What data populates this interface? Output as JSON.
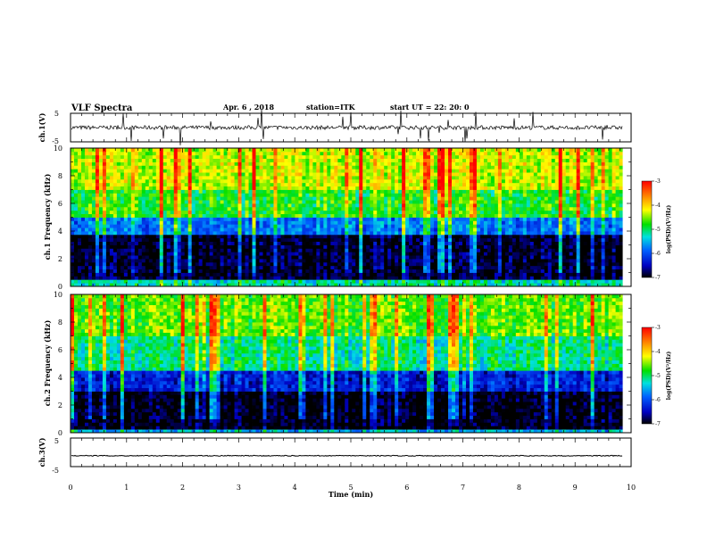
{
  "header": {
    "title": "VLF Spectra",
    "date": "Apr. 6 , 2018",
    "station": "station=ITK",
    "start": "start  UT  =   22: 20: 0"
  },
  "colors": {
    "background": "#ffffff",
    "axes": "#000000",
    "trace": "#000000"
  },
  "chart_data": [
    {
      "type": "line",
      "panel": "ch1-waveform",
      "ylabel": "ch.1(V)",
      "ylim": [
        -5,
        5
      ],
      "yticks": [
        "5",
        "-5"
      ],
      "xlim": [
        0,
        10
      ],
      "y_baseline_v": 0
    },
    {
      "type": "heatmap",
      "panel": "ch1-spectrogram",
      "ylabel": "ch.1  Frequency  (kHz)",
      "ylim": [
        0,
        10
      ],
      "xlim": [
        0,
        9.85
      ],
      "yticks": [
        "0",
        "2",
        "4",
        "6",
        "8",
        "10"
      ],
      "colorbar": {
        "label": "log(PSD)(V²/Hz)",
        "range": [
          -7,
          -3
        ],
        "ticks": [
          "-3",
          "-4",
          "-5",
          "-6",
          "-7"
        ]
      },
      "bands": [
        {
          "f_from_khz": 0,
          "f_to_khz": 0.5,
          "log_psd": -5.2
        },
        {
          "f_from_khz": 0.5,
          "f_to_khz": 3.8,
          "log_psd": -6.9
        },
        {
          "f_from_khz": 3.8,
          "f_to_khz": 5,
          "log_psd": -5.8
        },
        {
          "f_from_khz": 5,
          "f_to_khz": 7,
          "log_psd": -4.8
        },
        {
          "f_from_khz": 7,
          "f_to_khz": 10,
          "log_psd": -4.3
        }
      ]
    },
    {
      "type": "heatmap",
      "panel": "ch2-spectrogram",
      "ylabel": "ch.2  Frequency  (kHz)",
      "ylim": [
        0,
        10
      ],
      "xlim": [
        0,
        9.85
      ],
      "yticks": [
        "0",
        "2",
        "4",
        "6",
        "8",
        "10"
      ],
      "colorbar": {
        "label": "log(PSD)(V²/Hz)",
        "range": [
          -7,
          -3
        ],
        "ticks": [
          "-3",
          "-4",
          "-5",
          "-6",
          "-7"
        ]
      },
      "bands": [
        {
          "f_from_khz": 0,
          "f_to_khz": 0.3,
          "log_psd": -5.5
        },
        {
          "f_from_khz": 0.3,
          "f_to_khz": 3,
          "log_psd": -7
        },
        {
          "f_from_khz": 3,
          "f_to_khz": 4.5,
          "log_psd": -6.3
        },
        {
          "f_from_khz": 4.5,
          "f_to_khz": 7,
          "log_psd": -5.1
        },
        {
          "f_from_khz": 7,
          "f_to_khz": 10,
          "log_psd": -4.6
        }
      ]
    },
    {
      "type": "line",
      "panel": "ch3-waveform",
      "ylabel": "ch.3(V)",
      "ylim": [
        -5,
        5
      ],
      "yticks": [
        "5",
        "-5"
      ],
      "xlim": [
        0,
        10
      ],
      "y_baseline_v": -1.2
    }
  ],
  "xaxis": {
    "label": "Time  (min)",
    "range": [
      0,
      10
    ],
    "ticks": [
      "0",
      "1",
      "2",
      "3",
      "4",
      "5",
      "6",
      "7",
      "8",
      "9",
      "10"
    ]
  }
}
